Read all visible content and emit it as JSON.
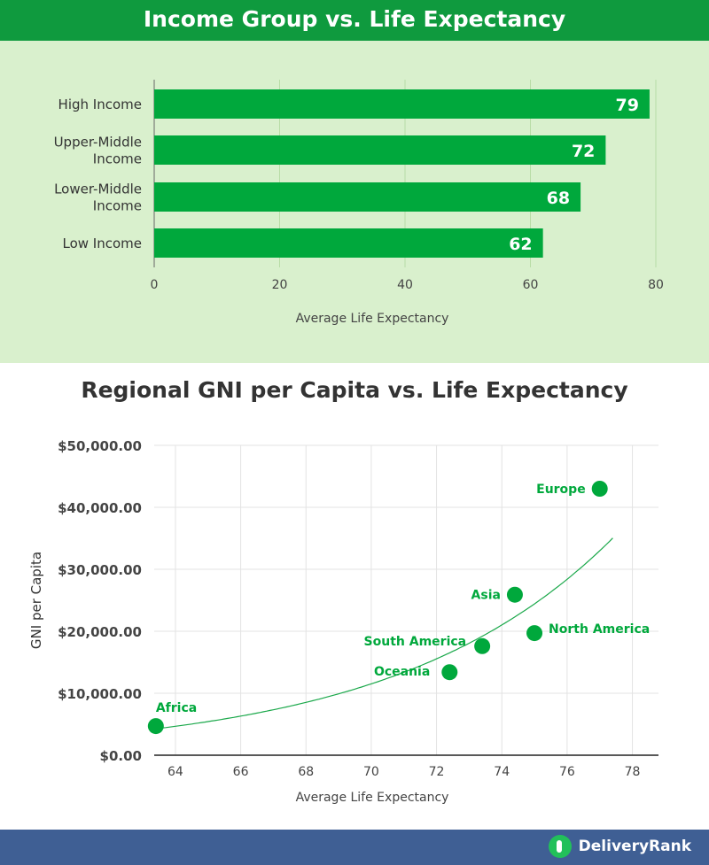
{
  "chart_data": [
    {
      "type": "bar",
      "orientation": "horizontal",
      "title": "Income Group vs. Life Expectancy",
      "categories": [
        "High Income",
        "Upper-Middle Income",
        "Lower-Middle Income",
        "Low Income"
      ],
      "category_lines": [
        [
          "High Income"
        ],
        [
          "Upper-Middle",
          "Income"
        ],
        [
          "Lower-Middle",
          "Income"
        ],
        [
          "Low Income"
        ]
      ],
      "values": [
        79,
        72,
        68,
        62
      ],
      "data_labels": [
        "79",
        "72",
        "68",
        "62"
      ],
      "xlabel": "Average Life Expectancy",
      "xlim": [
        0,
        80
      ],
      "xticks": [
        0,
        20,
        40,
        60,
        80
      ],
      "xtick_labels": [
        "0",
        "20",
        "40",
        "60",
        "80"
      ],
      "grid": "vertical",
      "colors": {
        "bar": "#00a83c",
        "grid": "#b8dca6",
        "background": "#d9f0cd",
        "title_bg": "#0f9a3e"
      }
    },
    {
      "type": "scatter",
      "title": "Regional GNI per Capita vs. Life Expectancy",
      "xlabel": "Average Life Expectancy",
      "ylabel": "GNI per Capita",
      "xlim": [
        63.35,
        78.8
      ],
      "ylim": [
        0,
        50000
      ],
      "xticks": [
        64,
        66,
        68,
        70,
        72,
        74,
        76,
        78
      ],
      "xtick_labels": [
        "64",
        "66",
        "68",
        "70",
        "72",
        "74",
        "76",
        "78"
      ],
      "yticks": [
        0,
        10000,
        20000,
        30000,
        40000,
        50000
      ],
      "ytick_labels": [
        "$0.00",
        "$10,000.00",
        "$20,000.00",
        "$30,000.00",
        "$40,000.00",
        "$50,000.00"
      ],
      "points": [
        {
          "label": "Africa",
          "x": 63.4,
          "y": 4700
        },
        {
          "label": "Oceania",
          "x": 72.4,
          "y": 13400
        },
        {
          "label": "South America",
          "x": 73.4,
          "y": 17600
        },
        {
          "label": "Asia",
          "x": 74.4,
          "y": 25900
        },
        {
          "label": "North America",
          "x": 75.0,
          "y": 19700
        },
        {
          "label": "Europe",
          "x": 77.0,
          "y": 43000
        }
      ],
      "trendline": {
        "type": "exponential",
        "x_range": [
          63.3,
          77.4
        ]
      },
      "grid": true,
      "colors": {
        "point": "#00a83c",
        "label": "#00a83c",
        "trendline": "#1aa84a",
        "grid": "#e3e3e3"
      }
    }
  ],
  "footer": {
    "brand": "DeliveryRank",
    "color": "#3f5f94"
  }
}
